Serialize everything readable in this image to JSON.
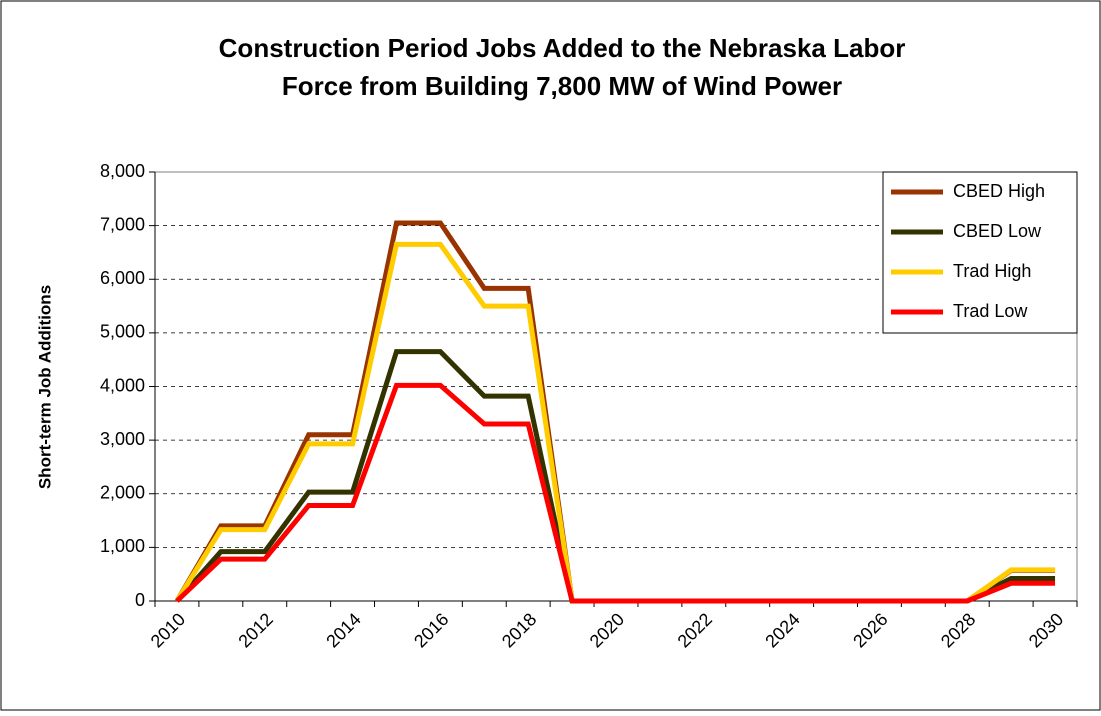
{
  "chart_data": {
    "type": "line",
    "title": [
      "Construction Period Jobs Added to the Nebraska Labor",
      "Force from Building 7,800 MW of Wind Power"
    ],
    "y_label": "Short-term Job Additions",
    "categories": [
      "2010",
      null,
      "2012",
      null,
      "2014",
      null,
      "2016",
      null,
      "2018",
      null,
      "2020",
      null,
      "2022",
      null,
      "2024",
      null,
      "2026",
      null,
      "2028",
      null,
      "2030"
    ],
    "series": [
      {
        "name": "CBED High",
        "color": "#993300",
        "values": [
          0,
          1400,
          1400,
          3100,
          3100,
          7050,
          7050,
          5830,
          5830,
          0,
          0,
          0,
          0,
          0,
          0,
          0,
          0,
          0,
          0,
          570,
          570
        ]
      },
      {
        "name": "CBED Low",
        "color": "#333300",
        "values": [
          0,
          920,
          920,
          2030,
          2030,
          4650,
          4650,
          3820,
          3820,
          0,
          0,
          0,
          0,
          0,
          0,
          0,
          0,
          0,
          0,
          420,
          420
        ]
      },
      {
        "name": "Trad High",
        "color": "#ffcc00",
        "values": [
          0,
          1330,
          1330,
          2930,
          2930,
          6650,
          6650,
          5500,
          5500,
          0,
          0,
          0,
          0,
          0,
          0,
          0,
          0,
          0,
          0,
          580,
          580
        ]
      },
      {
        "name": "Trad Low",
        "color": "#ff0000",
        "values": [
          0,
          780,
          780,
          1780,
          1780,
          4020,
          4020,
          3300,
          3300,
          0,
          0,
          0,
          0,
          0,
          0,
          0,
          0,
          0,
          0,
          330,
          330
        ]
      }
    ],
    "ylim": [
      0,
      8000
    ],
    "yticks": [
      0,
      {
        "value": 1000,
        "label": "1,000"
      },
      {
        "value": 2000,
        "label": "2,000"
      },
      {
        "value": 3000,
        "label": "3,000"
      },
      {
        "value": 4000,
        "label": "4,000"
      },
      {
        "value": 5000,
        "label": "5,000"
      },
      {
        "value": 6000,
        "label": "6,000"
      },
      {
        "value": 7000,
        "label": "7,000"
      },
      {
        "value": 8000,
        "label": "8,000"
      }
    ],
    "grid": true,
    "legend": "top-right"
  }
}
